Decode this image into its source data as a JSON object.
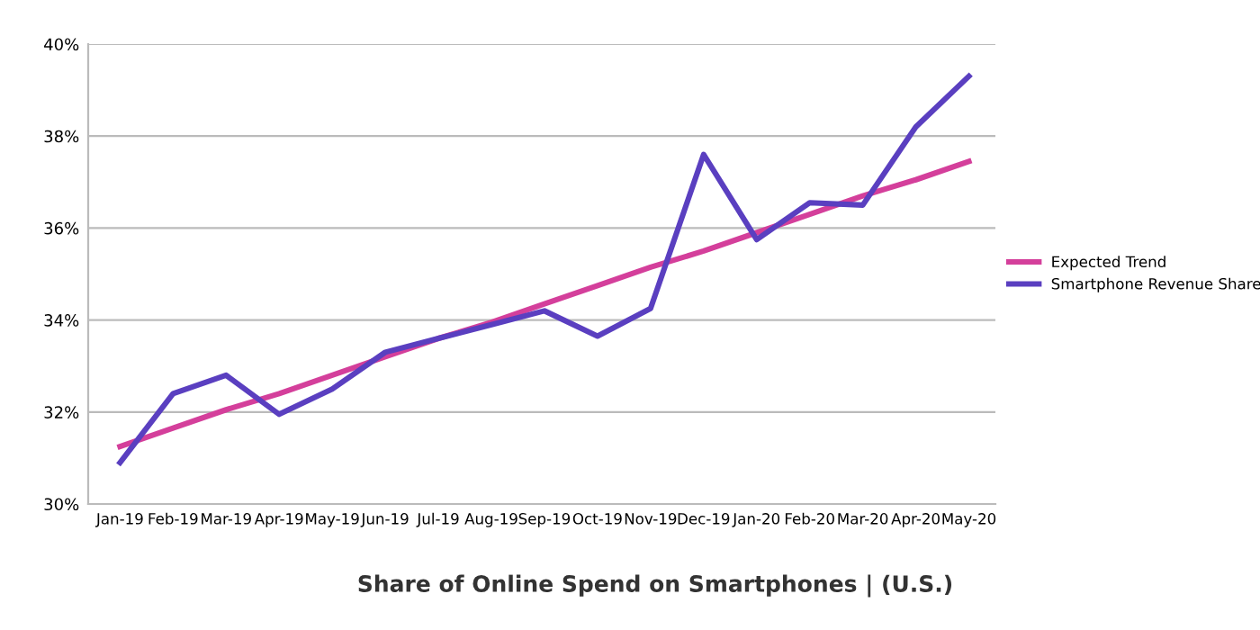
{
  "chart_data": {
    "type": "line",
    "title": "Share of Online Spend on Smartphones | (U.S.)",
    "categories": [
      "Jan-19",
      "Feb-19",
      "Mar-19",
      "Apr-19",
      "May-19",
      "Jun-19",
      "Jul-19",
      "Aug-19",
      "Sep-19",
      "Oct-19",
      "Nov-19",
      "Dec-19",
      "Jan-20",
      "Feb-20",
      "Mar-20",
      "Apr-20",
      "May-20"
    ],
    "series": [
      {
        "name": "Expected Trend",
        "color": "#d43f9b",
        "values": [
          31.25,
          31.65,
          32.05,
          32.4,
          32.8,
          33.2,
          33.6,
          33.95,
          34.35,
          34.75,
          35.15,
          35.5,
          35.9,
          36.3,
          36.7,
          37.05,
          37.45
        ]
      },
      {
        "name": "Smartphone Revenue Share",
        "color": "#5a3fc0",
        "values": [
          30.9,
          32.4,
          32.8,
          31.95,
          32.5,
          33.3,
          33.6,
          33.9,
          34.2,
          33.65,
          34.25,
          37.6,
          35.75,
          36.55,
          36.5,
          38.2,
          39.3
        ]
      }
    ],
    "ylim": [
      30,
      40
    ],
    "yticks": [
      {
        "value": 30,
        "label": "30%"
      },
      {
        "value": 32,
        "label": "32%"
      },
      {
        "value": 34,
        "label": "34%"
      },
      {
        "value": 36,
        "label": "36%"
      },
      {
        "value": 38,
        "label": "38%"
      },
      {
        "value": 40,
        "label": "40%"
      }
    ],
    "grid": "y",
    "legend": "right",
    "marker": "none",
    "line_style": "solid"
  }
}
